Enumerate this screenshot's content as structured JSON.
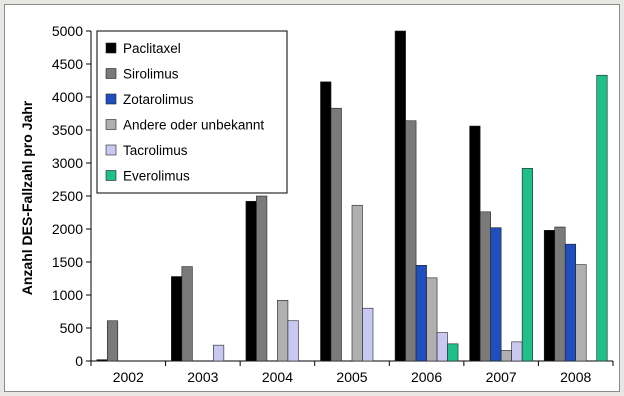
{
  "chart_data": {
    "type": "bar",
    "title": "",
    "xlabel": "",
    "ylabel": "Anzahl DES-Fallzahl pro Jahr",
    "ylim": [
      0,
      5000
    ],
    "yticks": [
      0,
      500,
      1000,
      1500,
      2000,
      2500,
      3000,
      3500,
      4000,
      4500,
      5000
    ],
    "grid": false,
    "legend_position": "top-left",
    "categories": [
      "2002",
      "2003",
      "2004",
      "2005",
      "2006",
      "2007",
      "2008"
    ],
    "series": [
      {
        "name": "Paclitaxel",
        "color": "#000000",
        "values": [
          20,
          1280,
          2420,
          4230,
          5000,
          3560,
          1980
        ]
      },
      {
        "name": "Sirolimus",
        "color": "#7a7a7a",
        "values": [
          610,
          1430,
          2500,
          3830,
          3640,
          2260,
          2030
        ]
      },
      {
        "name": "Zotarolimus",
        "color": "#1f4fbf",
        "values": [
          0,
          0,
          0,
          0,
          1450,
          2020,
          1770
        ]
      },
      {
        "name": "Andere oder unbekannt",
        "color": "#b0b0b0",
        "values": [
          0,
          0,
          920,
          2360,
          1260,
          160,
          1460
        ]
      },
      {
        "name": "Tacrolimus",
        "color": "#c8c8f0",
        "values": [
          0,
          240,
          610,
          800,
          430,
          290,
          0
        ]
      },
      {
        "name": "Everolimus",
        "color": "#1fbf8a",
        "values": [
          0,
          0,
          0,
          0,
          260,
          2920,
          4330
        ]
      }
    ]
  }
}
